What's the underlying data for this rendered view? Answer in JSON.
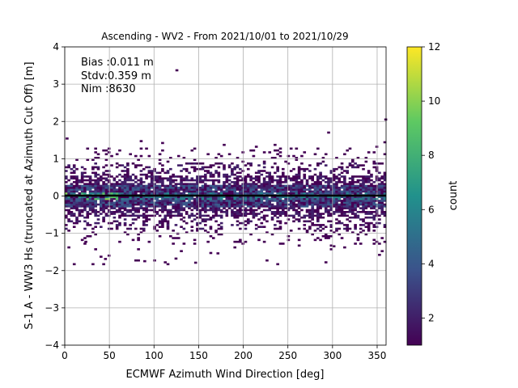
{
  "chart_data": {
    "type": "heatmap",
    "title": "Ascending - WV2 - From 2021/10/01 to 2021/10/29",
    "xlabel": "ECMWF Azimuth Wind Direction [deg]",
    "ylabel": "S-1 A - WW3 Hs (truncated at Azimuth Cut Off) [m]",
    "xlim": [
      0,
      360
    ],
    "ylim": [
      -4,
      4
    ],
    "xticks": [
      "0",
      "50",
      "100",
      "150",
      "200",
      "250",
      "300",
      "350"
    ],
    "yticks": [
      "−4",
      "−3",
      "−2",
      "−1",
      "0",
      "1",
      "2",
      "3",
      "4"
    ],
    "grid": true,
    "stats": [
      "Bias :0.011 m",
      "Stdv:0.359 m",
      "Nim :8630"
    ],
    "colorbar": {
      "label": "count",
      "range": [
        1,
        12
      ],
      "ticks": [
        "2",
        "4",
        "6",
        "8",
        "10",
        "12"
      ],
      "colormap": [
        "#440154",
        "#3b528b",
        "#21918c",
        "#5ec962",
        "#fde725"
      ]
    },
    "bin_size": {
      "x_deg": 3,
      "y_m": 0.05
    },
    "mean_line": {
      "y": 0.011,
      "color": "#000000"
    },
    "density_profile": {
      "y_center": 0.0,
      "core_count_max": 11,
      "scatter_y_range": [
        -1.8,
        1.6
      ],
      "outliers": [
        {
          "x": 1,
          "y": 1.52
        },
        {
          "x": 124,
          "y": 3.35
        },
        {
          "x": 294,
          "y": 1.68
        },
        {
          "x": 358,
          "y": 2.03
        },
        {
          "x": 357,
          "y": 1.42
        },
        {
          "x": 22,
          "y": -1.25
        },
        {
          "x": 48,
          "y": -1.62
        },
        {
          "x": 44,
          "y": -1.71
        },
        {
          "x": 88,
          "y": -1.77
        },
        {
          "x": 145,
          "y": -1.81
        },
        {
          "x": 170,
          "y": -1.56
        },
        {
          "x": 125,
          "y": -1.03
        },
        {
          "x": 300,
          "y": -1.37
        }
      ]
    }
  }
}
